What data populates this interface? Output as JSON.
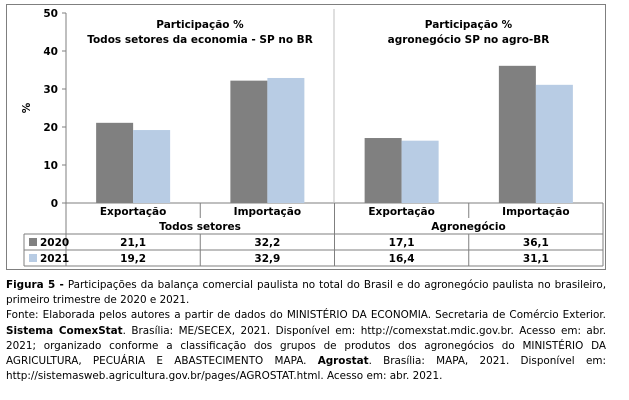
{
  "chart_data": {
    "type": "bar",
    "ylabel": "%",
    "ylim": [
      0,
      50
    ],
    "yticks": [
      0,
      10,
      20,
      30,
      40,
      50
    ],
    "grid": false,
    "panels": [
      {
        "title_line1": "Participação %",
        "title_line2": "Todos setores da economia - SP no BR",
        "group_label": "Todos setores"
      },
      {
        "title_line1": "Participação %",
        "title_line2": "agronegócio SP no agro-BR",
        "group_label": "Agronegócio"
      }
    ],
    "categories": [
      "Exportação",
      "Importação",
      "Exportação",
      "Importação"
    ],
    "series": [
      {
        "name": "2020",
        "color": "#808080",
        "values": [
          21.1,
          32.2,
          17.1,
          36.1
        ],
        "labels": [
          "21,1",
          "32,2",
          "17,1",
          "36,1"
        ]
      },
      {
        "name": "2021",
        "color": "#b8cce4",
        "values": [
          19.2,
          32.9,
          16.4,
          31.1
        ],
        "labels": [
          "19,2",
          "32,9",
          "16,4",
          "31,1"
        ]
      }
    ]
  },
  "caption": {
    "figure_label": "Figura 5 -",
    "figure_text": " Participações da balança comercial paulista no total do Brasil e do agronegócio paulista no brasileiro, primeiro trimestre de 2020 e 2021.",
    "source_1": "Fonte: Elaborada pelos autores a partir de dados do MINISTÉRIO DA ECONOMIA. Secretaria de Comércio Exterior. ",
    "source_bold_1": "Sistema ComexStat",
    "source_2": ". Brasília: ME/SECEX, 2021. Disponível em: http://comexstat.mdic.gov.br. Acesso em: abr. 2021; organizado conforme a classificação dos grupos de produtos dos agronegócios do MINISTÉRIO DA AGRICULTURA, PECUÁRIA E ABASTECIMENTO MAPA. ",
    "source_bold_2": "Agrostat",
    "source_3": ". Brasília: MAPA, 2021. Disponível em: http://sistemasweb.agricultura.gov.br/pages/AGROSTAT.html. Acesso em: abr. 2021."
  }
}
